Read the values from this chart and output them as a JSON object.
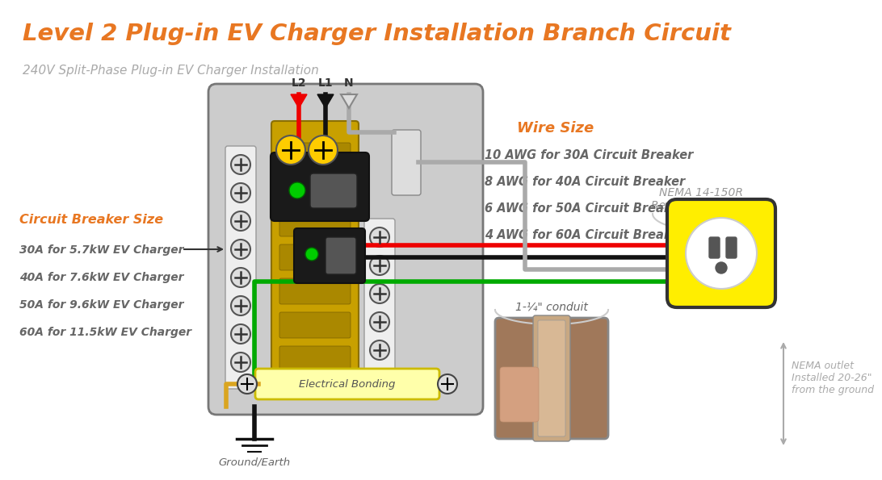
{
  "title": "Level 2 Plug-in EV Charger Installation Branch Circuit",
  "subtitle": "240V Split-Phase Plug-in EV Charger Installation",
  "title_color": "#E87722",
  "subtitle_color": "#AAAAAA",
  "bg_color": "#FFFFFF",
  "panel_color": "#CCCCCC",
  "panel_border": "#777777",
  "bus_color": "#C8A000",
  "wire_red": "#EE0000",
  "wire_black": "#111111",
  "wire_green": "#00AA00",
  "wire_gray": "#AAAAAA",
  "wire_yellow": "#DAA520",
  "outlet_bg": "#FFEE00",
  "outlet_border": "#333333",
  "label_color": "#777777",
  "orange_color": "#E87722",
  "circuit_breaker_labels": [
    "30A for 5.7kW EV Charger",
    "40A for 7.6kW EV Charger",
    "50A for 9.6kW EV Charger",
    "60A for 11.5kW EV Charger"
  ],
  "wire_size_labels": [
    "10 AWG for 30A Circuit Breaker",
    "8 AWG for 40A Circuit Breaker",
    "6 AWG for 50A Circuit Breaker",
    "4 AWG for 60A Circuit Breaker"
  ],
  "nema_label_line1": "NEMA 14-150R",
  "nema_label_line2": "Receptacle Outlet",
  "conduit_label": "1-¼\" conduit",
  "ground_label": "Ground/Earth",
  "height_label": "NEMA outlet\nInstalled 20-26\"\nfrom the ground",
  "electrical_bonding_label": "Electrical Bonding",
  "terminal_labels": [
    "L2",
    "L1",
    "N"
  ],
  "cb_arrow_label": "Circuit Breaker Size"
}
